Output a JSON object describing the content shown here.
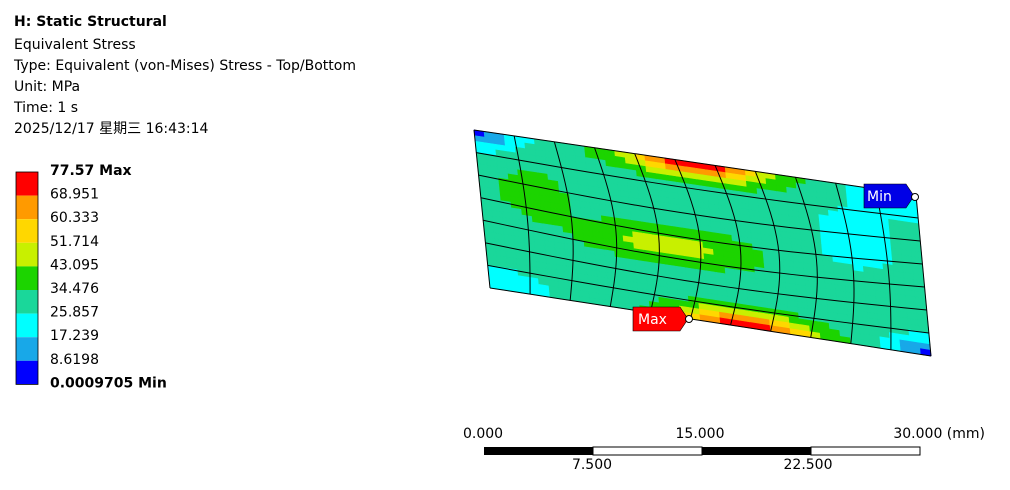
{
  "header": {
    "title": "H: Static Structural",
    "lines": [
      "Equivalent Stress",
      "Type: Equivalent (von-Mises) Stress - Top/Bottom",
      "Unit: MPa",
      "Time: 1 s",
      "2025/12/17 星期三 16:43:14"
    ]
  },
  "legend": {
    "labels": [
      "77.57 Max",
      "68.951",
      "60.333",
      "51.714",
      "43.095",
      "34.476",
      "25.857",
      "17.239",
      "8.6198",
      "0.0009705 Min"
    ]
  },
  "probes": {
    "min": "Min",
    "max": "Max"
  },
  "scale_bar": {
    "top_labels": [
      "0.000",
      "15.000",
      "30.000 (mm)"
    ],
    "bottom_labels": [
      "7.500",
      "22.500"
    ]
  }
}
